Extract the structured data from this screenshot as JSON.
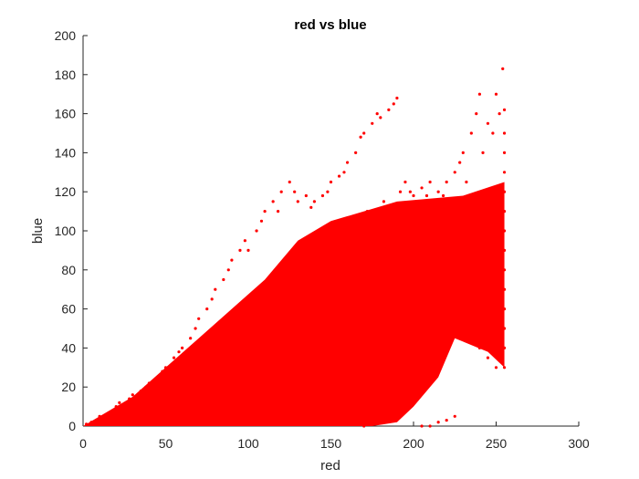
{
  "chart_data": {
    "type": "scatter",
    "title": "red vs blue",
    "xlabel": "red",
    "ylabel": "blue",
    "xlim": [
      0,
      300
    ],
    "ylim": [
      0,
      200
    ],
    "x_ticks": [
      0,
      50,
      100,
      150,
      200,
      250,
      300
    ],
    "y_ticks": [
      0,
      20,
      40,
      60,
      80,
      100,
      120,
      140,
      160,
      180,
      200
    ],
    "grid": false,
    "marker_color": "#ff0000",
    "series": [
      {
        "values": [
          [
            2,
            1
          ],
          [
            5,
            2
          ],
          [
            8,
            3
          ],
          [
            10,
            5
          ],
          [
            12,
            4
          ],
          [
            15,
            6
          ],
          [
            18,
            8
          ],
          [
            20,
            10
          ],
          [
            22,
            12
          ],
          [
            25,
            9
          ],
          [
            28,
            14
          ],
          [
            30,
            16
          ],
          [
            32,
            11
          ],
          [
            35,
            18
          ],
          [
            38,
            20
          ],
          [
            40,
            22
          ],
          [
            42,
            15
          ],
          [
            45,
            25
          ],
          [
            48,
            28
          ],
          [
            50,
            30
          ],
          [
            52,
            20
          ],
          [
            55,
            35
          ],
          [
            58,
            38
          ],
          [
            60,
            40
          ],
          [
            62,
            25
          ],
          [
            65,
            45
          ],
          [
            68,
            50
          ],
          [
            70,
            55
          ],
          [
            72,
            35
          ],
          [
            75,
            60
          ],
          [
            78,
            65
          ],
          [
            80,
            70
          ],
          [
            82,
            40
          ],
          [
            85,
            75
          ],
          [
            88,
            80
          ],
          [
            90,
            85
          ],
          [
            92,
            50
          ],
          [
            95,
            90
          ],
          [
            98,
            95
          ],
          [
            100,
            90
          ],
          [
            102,
            60
          ],
          [
            105,
            100
          ],
          [
            108,
            105
          ],
          [
            110,
            110
          ],
          [
            112,
            70
          ],
          [
            115,
            115
          ],
          [
            118,
            110
          ],
          [
            120,
            120
          ],
          [
            122,
            80
          ],
          [
            125,
            125
          ],
          [
            128,
            120
          ],
          [
            130,
            115
          ],
          [
            132,
            90
          ],
          [
            135,
            118
          ],
          [
            138,
            112
          ],
          [
            140,
            115
          ],
          [
            142,
            95
          ],
          [
            145,
            118
          ],
          [
            148,
            120
          ],
          [
            150,
            125
          ],
          [
            152,
            100
          ],
          [
            155,
            128
          ],
          [
            158,
            130
          ],
          [
            160,
            135
          ],
          [
            162,
            105
          ],
          [
            165,
            140
          ],
          [
            168,
            148
          ],
          [
            170,
            150
          ],
          [
            172,
            110
          ],
          [
            175,
            155
          ],
          [
            178,
            160
          ],
          [
            180,
            158
          ],
          [
            182,
            115
          ],
          [
            185,
            162
          ],
          [
            188,
            165
          ],
          [
            190,
            168
          ],
          [
            192,
            120
          ],
          [
            195,
            125
          ],
          [
            198,
            120
          ],
          [
            200,
            118
          ],
          [
            202,
            110
          ],
          [
            205,
            122
          ],
          [
            208,
            118
          ],
          [
            210,
            125
          ],
          [
            212,
            115
          ],
          [
            215,
            120
          ],
          [
            218,
            118
          ],
          [
            220,
            125
          ],
          [
            222,
            110
          ],
          [
            225,
            130
          ],
          [
            228,
            135
          ],
          [
            230,
            140
          ],
          [
            232,
            125
          ],
          [
            235,
            150
          ],
          [
            238,
            160
          ],
          [
            240,
            170
          ],
          [
            242,
            140
          ],
          [
            245,
            155
          ],
          [
            248,
            150
          ],
          [
            250,
            170
          ],
          [
            252,
            160
          ],
          [
            254,
            183
          ],
          [
            255,
            162
          ],
          [
            255,
            150
          ],
          [
            255,
            140
          ],
          [
            255,
            130
          ],
          [
            255,
            120
          ],
          [
            255,
            110
          ],
          [
            255,
            100
          ],
          [
            255,
            90
          ],
          [
            255,
            80
          ],
          [
            255,
            70
          ],
          [
            255,
            60
          ],
          [
            255,
            50
          ],
          [
            255,
            40
          ],
          [
            255,
            30
          ],
          [
            250,
            30
          ],
          [
            245,
            35
          ],
          [
            240,
            40
          ],
          [
            235,
            45
          ],
          [
            230,
            50
          ],
          [
            225,
            55
          ],
          [
            220,
            60
          ],
          [
            215,
            50
          ],
          [
            210,
            45
          ],
          [
            205,
            40
          ],
          [
            200,
            30
          ],
          [
            195,
            20
          ],
          [
            190,
            10
          ],
          [
            185,
            5
          ],
          [
            180,
            2
          ],
          [
            175,
            1
          ],
          [
            170,
            0
          ],
          [
            165,
            2
          ],
          [
            160,
            5
          ],
          [
            155,
            8
          ],
          [
            150,
            10
          ],
          [
            145,
            12
          ],
          [
            140,
            10
          ],
          [
            135,
            8
          ],
          [
            130,
            6
          ],
          [
            125,
            5
          ],
          [
            120,
            4
          ],
          [
            115,
            3
          ],
          [
            110,
            2
          ],
          [
            105,
            3
          ],
          [
            100,
            5
          ],
          [
            95,
            8
          ],
          [
            90,
            10
          ],
          [
            85,
            12
          ],
          [
            80,
            8
          ],
          [
            75,
            5
          ],
          [
            70,
            3
          ],
          [
            65,
            2
          ],
          [
            60,
            2
          ],
          [
            55,
            3
          ],
          [
            50,
            5
          ],
          [
            45,
            6
          ],
          [
            40,
            5
          ],
          [
            35,
            4
          ],
          [
            30,
            3
          ],
          [
            25,
            2
          ],
          [
            20,
            2
          ],
          [
            15,
            1
          ],
          [
            10,
            1
          ],
          [
            205,
            0
          ],
          [
            210,
            0
          ],
          [
            215,
            2
          ],
          [
            220,
            3
          ],
          [
            225,
            5
          ]
        ]
      }
    ]
  }
}
